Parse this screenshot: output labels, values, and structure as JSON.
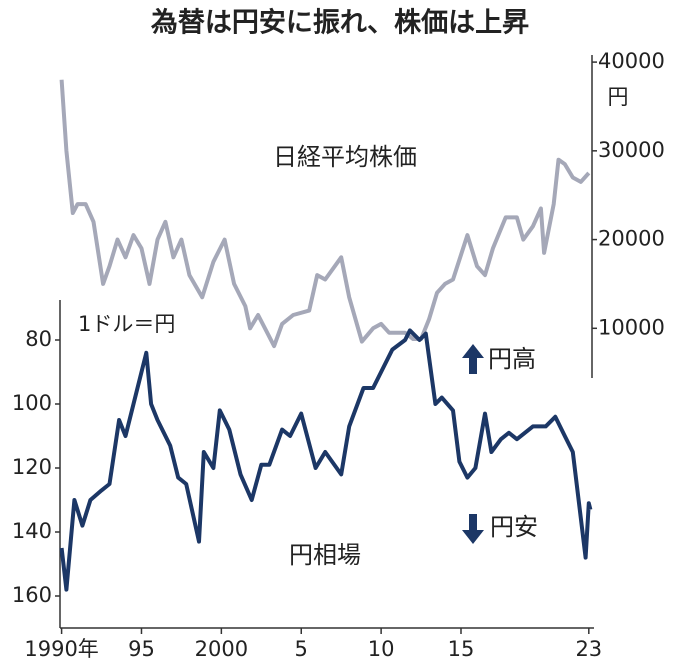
{
  "chart_data": {
    "type": "line",
    "title": "為替は円安に振れ、株価は上昇",
    "y_label": "1ドル＝円",
    "y2_unit": "円",
    "annotations": [
      "円高",
      "円安"
    ],
    "xlim": [
      1989.9,
      2023.2
    ],
    "xticks": [
      {
        "value": 1990,
        "label": "1990年"
      },
      {
        "value": 1995,
        "label": "95"
      },
      2000,
      {
        "value": 2005,
        "label": "5"
      },
      {
        "value": 2010,
        "label": "10"
      },
      {
        "value": 2015,
        "label": "15"
      },
      {
        "value": 2023,
        "label": "23"
      }
    ],
    "ylim": [
      170,
      67.5
    ],
    "yticks": [
      80,
      100,
      120,
      140,
      160
    ],
    "y2lim": [
      4400,
      40800
    ],
    "y2ticks": [
      10000,
      20000,
      30000,
      40000
    ],
    "series": [
      {
        "name": "日経平均株価",
        "color": "#a5a8b8",
        "axis": "y2",
        "x": [
          1990.0,
          1990.3,
          1990.7,
          1991.0,
          1991.5,
          1992.0,
          1992.6,
          1993.0,
          1993.5,
          1994.0,
          1994.5,
          1995.0,
          1995.5,
          1996.0,
          1996.5,
          1997.0,
          1997.5,
          1998.0,
          1998.8,
          1999.5,
          2000.2,
          2000.8,
          2001.5,
          2001.8,
          2002.3,
          2003.3,
          2003.8,
          2004.5,
          2005.5,
          2006.0,
          2006.5,
          2007.5,
          2008.0,
          2008.8,
          2009.5,
          2010.0,
          2010.5,
          2011.5,
          2012.0,
          2012.5,
          2013.0,
          2013.5,
          2014.0,
          2014.5,
          2015.4,
          2016.0,
          2016.5,
          2017.0,
          2017.8,
          2018.5,
          2018.9,
          2019.5,
          2020.0,
          2020.2,
          2020.8,
          2021.1,
          2021.5,
          2022.0,
          2022.5,
          2023.0
        ],
        "values": [
          38000,
          30000,
          23000,
          24000,
          24000,
          22000,
          15000,
          17000,
          20000,
          18000,
          20500,
          19000,
          15000,
          20000,
          22000,
          18000,
          20000,
          16000,
          13500,
          17500,
          20000,
          15000,
          12500,
          10000,
          11500,
          8000,
          10500,
          11500,
          12000,
          16000,
          15500,
          18000,
          13500,
          8500,
          10000,
          10500,
          9500,
          9500,
          8800,
          8800,
          11000,
          14000,
          15000,
          15500,
          20500,
          17000,
          16000,
          19000,
          22500,
          22500,
          20000,
          21500,
          23500,
          18500,
          24000,
          29000,
          28500,
          27000,
          26500,
          27500
        ]
      },
      {
        "name": "円相場",
        "color": "#1c3766",
        "x": [
          1990.0,
          1990.3,
          1990.8,
          1991.3,
          1991.8,
          1992.5,
          1993.0,
          1993.6,
          1994.0,
          1994.5,
          1995.3,
          1995.6,
          1996.0,
          1996.8,
          1997.3,
          1997.8,
          1998.6,
          1998.9,
          1999.5,
          1999.9,
          2000.5,
          2001.2,
          2001.9,
          2002.5,
          2003.0,
          2003.8,
          2004.3,
          2005.0,
          2005.9,
          2006.5,
          2007.5,
          2008.0,
          2008.9,
          2009.5,
          2010.0,
          2010.7,
          2011.5,
          2011.8,
          2012.4,
          2012.8,
          2013.4,
          2013.8,
          2014.5,
          2014.9,
          2015.4,
          2015.9,
          2016.5,
          2016.9,
          2017.5,
          2018.0,
          2018.5,
          2019.5,
          2020.3,
          2020.9,
          2021.5,
          2022.0,
          2022.8,
          2023.0,
          2023.1
        ],
        "values": [
          145,
          158,
          130,
          138,
          130,
          127,
          125,
          105,
          110,
          100,
          84,
          100,
          105,
          113,
          123,
          125,
          143,
          115,
          120,
          102,
          108,
          122,
          130,
          119,
          119,
          108,
          110,
          103,
          120,
          115,
          122,
          107,
          95,
          95,
          90,
          83,
          80,
          77,
          80,
          78,
          100,
          98,
          102,
          118,
          123,
          120,
          103,
          115,
          111,
          109,
          111,
          107,
          107,
          104,
          110,
          115,
          148,
          131,
          133
        ]
      }
    ]
  }
}
